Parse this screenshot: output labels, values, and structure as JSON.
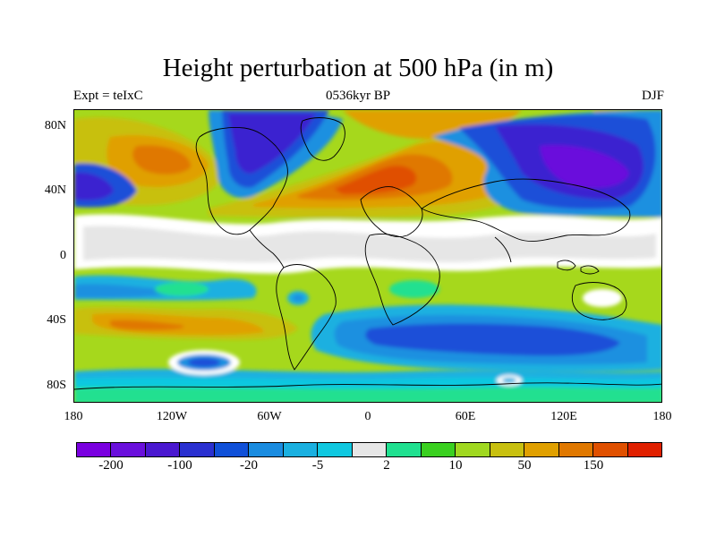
{
  "title": "Height perturbation at 500 hPa (in m)",
  "subtitle_left": "Expt = teIxC",
  "subtitle_center": "0536kyr BP",
  "subtitle_right": "DJF",
  "lat_labels": [
    "80N",
    "40N",
    "0",
    "40S",
    "80S"
  ],
  "lon_labels": [
    "180",
    "120W",
    "60W",
    "0",
    "60E",
    "120E",
    "180"
  ],
  "colorbar": {
    "colors": [
      "#7a00e0",
      "#6a10dc",
      "#4a18d0",
      "#2a30d0",
      "#1050d8",
      "#1a8ce0",
      "#1ab0e0",
      "#10c8e0",
      "#e6e6e6",
      "#20e090",
      "#3ad020",
      "#a0d820",
      "#c8c010",
      "#e0a000",
      "#e07800",
      "#e05000",
      "#e02000"
    ],
    "tick_labels": [
      "-200",
      "-100",
      "-20",
      "-5",
      "2",
      "10",
      "50",
      "150"
    ]
  },
  "map_colors": {
    "ocean_bg": "#a6d81c",
    "white": "#ffffff",
    "grey": "#e6e6e6",
    "cyan": "#16c0e0",
    "light_blue": "#1a90e0",
    "blue": "#1e50d8",
    "deep_blue": "#3a20d0",
    "purple": "#6a10dc",
    "yellow_green": "#c8c010",
    "orange": "#e0a000",
    "dark_orange": "#e07800",
    "red": "#e05000",
    "green": "#3ad020",
    "teal": "#20e090",
    "coast": "#000000"
  }
}
